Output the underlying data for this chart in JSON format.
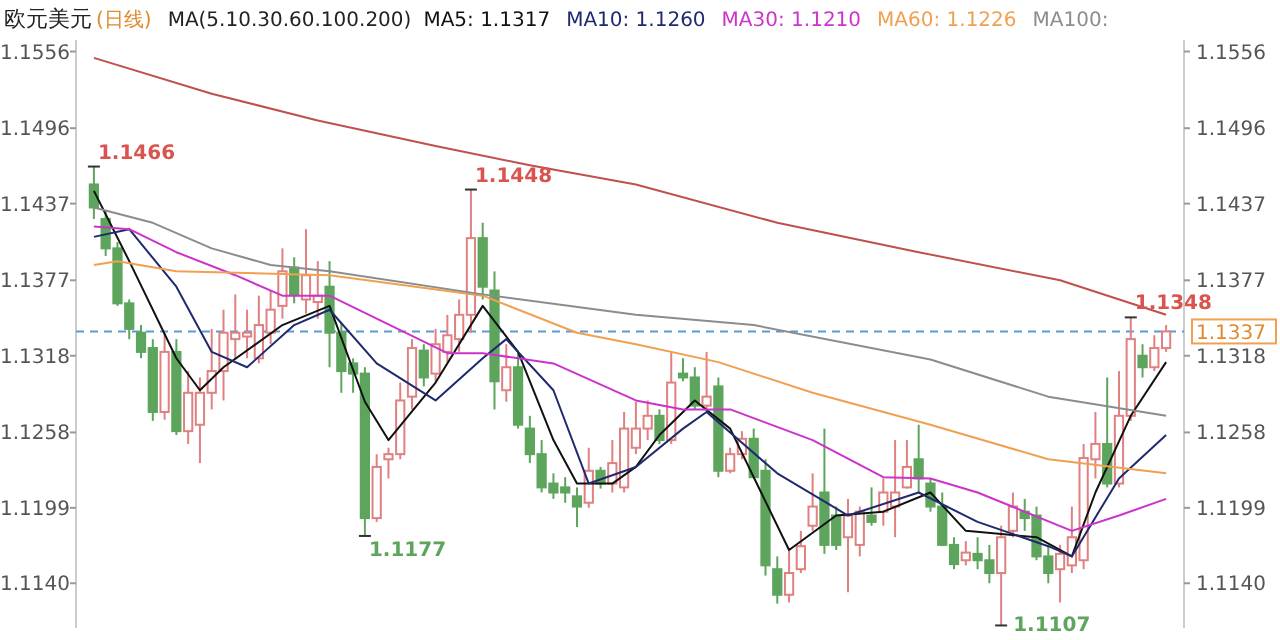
{
  "chart_data": {
    "type": "candlestick",
    "title": "欧元美元",
    "subtitle": "(日线)",
    "annotations": [
      "MA(5.10.30.60.100.200)",
      "1.1466",
      "1.1448",
      "1.1177",
      "1.1348",
      "1.1107"
    ],
    "categories": [
      null,
      null,
      null,
      null,
      null,
      null,
      null,
      null,
      null,
      null,
      null,
      null,
      null,
      null,
      null,
      null,
      null,
      null,
      null,
      null,
      null,
      null,
      null,
      null,
      null,
      null,
      null,
      null,
      null,
      null,
      null,
      null,
      null,
      null,
      null,
      null,
      null,
      null,
      null,
      null,
      null,
      null,
      null,
      null,
      null,
      null,
      null,
      null,
      null,
      null,
      null,
      null,
      null,
      null,
      null,
      null,
      null,
      null,
      null,
      null,
      null,
      null,
      null,
      null,
      null,
      null,
      null,
      null,
      null,
      null,
      null,
      null,
      null,
      null,
      null,
      null,
      null,
      null,
      null,
      null,
      null,
      null,
      null,
      null,
      null,
      null,
      null,
      null,
      null,
      null,
      null,
      null
    ],
    "ohlc": [
      [
        1.1452,
        1.1466,
        1.1425,
        1.1434
      ],
      [
        1.1425,
        1.1432,
        1.1396,
        1.1402
      ],
      [
        1.1402,
        1.1407,
        1.1357,
        1.1359
      ],
      [
        1.1359,
        1.1362,
        1.1331,
        1.1339
      ],
      [
        1.1336,
        1.1342,
        1.1316,
        1.1321
      ],
      [
        1.1324,
        1.1331,
        1.1267,
        1.1274
      ],
      [
        1.1274,
        1.1336,
        1.1268,
        1.1321
      ],
      [
        1.1321,
        1.1331,
        1.1256,
        1.1259
      ],
      [
        1.1259,
        1.1306,
        1.1249,
        1.1289
      ],
      [
        1.1264,
        1.1301,
        1.1234,
        1.1289
      ],
      [
        1.1289,
        1.1339,
        1.1276,
        1.1306
      ],
      [
        1.1306,
        1.1354,
        1.1283,
        1.1336
      ],
      [
        1.1331,
        1.1366,
        1.1316,
        1.1336
      ],
      [
        1.1333,
        1.1354,
        1.1316,
        1.1336
      ],
      [
        1.1316,
        1.1365,
        1.1312,
        1.1342
      ],
      [
        1.1336,
        1.1369,
        1.1327,
        1.1354
      ],
      [
        1.1357,
        1.1402,
        1.1347,
        1.1384
      ],
      [
        1.1387,
        1.1395,
        1.1359,
        1.1366
      ],
      [
        1.1362,
        1.1417,
        1.1351,
        1.1381
      ],
      [
        1.136,
        1.1392,
        1.1347,
        1.1365
      ],
      [
        1.1372,
        1.1392,
        1.1309,
        1.1336
      ],
      [
        1.1336,
        1.1344,
        1.1289,
        1.1306
      ],
      [
        1.1312,
        1.1316,
        1.1289,
        1.1304
      ],
      [
        1.1304,
        1.1309,
        1.1177,
        1.1191
      ],
      [
        1.1191,
        1.1241,
        1.1188,
        1.1231
      ],
      [
        1.1237,
        1.1246,
        1.1222,
        1.1241
      ],
      [
        1.1241,
        1.1297,
        1.1237,
        1.1283
      ],
      [
        1.1286,
        1.1331,
        1.1276,
        1.1324
      ],
      [
        1.1322,
        1.1327,
        1.1294,
        1.1301
      ],
      [
        1.1304,
        1.1339,
        1.1298,
        1.1327
      ],
      [
        1.1321,
        1.135,
        1.1313,
        1.1334
      ],
      [
        1.1331,
        1.1362,
        1.1321,
        1.135
      ],
      [
        1.135,
        1.1448,
        1.1336,
        1.141
      ],
      [
        1.141,
        1.1422,
        1.1362,
        1.1372
      ],
      [
        1.1369,
        1.1384,
        1.1276,
        1.1298
      ],
      [
        1.1291,
        1.1327,
        1.1282,
        1.1309
      ],
      [
        1.1309,
        1.1321,
        1.1261,
        1.1264
      ],
      [
        1.1261,
        1.1271,
        1.1234,
        1.1241
      ],
      [
        1.1241,
        1.1252,
        1.1211,
        1.1215
      ],
      [
        1.1218,
        1.1226,
        1.1206,
        1.1211
      ],
      [
        1.1215,
        1.1223,
        1.1203,
        1.1211
      ],
      [
        1.1208,
        1.1215,
        1.1184,
        1.12
      ],
      [
        1.1203,
        1.1246,
        1.1199,
        1.1228
      ],
      [
        1.1228,
        1.1231,
        1.1214,
        1.1218
      ],
      [
        1.1218,
        1.1252,
        1.1211,
        1.1234
      ],
      [
        1.1215,
        1.1274,
        1.1211,
        1.1261
      ],
      [
        1.1246,
        1.1282,
        1.1241,
        1.1261
      ],
      [
        1.1261,
        1.1283,
        1.1252,
        1.1271
      ],
      [
        1.1271,
        1.1276,
        1.1249,
        1.1252
      ],
      [
        1.1252,
        1.1321,
        1.1249,
        1.1297
      ],
      [
        1.1304,
        1.1316,
        1.1298,
        1.1301
      ],
      [
        1.1301,
        1.1309,
        1.1276,
        1.1279
      ],
      [
        1.1279,
        1.1321,
        1.1276,
        1.1286
      ],
      [
        1.1294,
        1.1301,
        1.1223,
        1.1228
      ],
      [
        1.1228,
        1.1246,
        1.1226,
        1.1241
      ],
      [
        1.1241,
        1.1259,
        1.1237,
        1.1253
      ],
      [
        1.1253,
        1.1261,
        1.1222,
        1.1223
      ],
      [
        1.1228,
        1.1237,
        1.1146,
        1.1154
      ],
      [
        1.1151,
        1.1161,
        1.1124,
        1.1131
      ],
      [
        1.1131,
        1.1166,
        1.1125,
        1.1148
      ],
      [
        1.1151,
        1.1181,
        1.1148,
        1.1169
      ],
      [
        1.1185,
        1.1226,
        1.1181,
        1.12
      ],
      [
        1.1211,
        1.1261,
        1.1163,
        1.117
      ],
      [
        1.1193,
        1.12,
        1.1166,
        1.117
      ],
      [
        1.1176,
        1.1206,
        1.1133,
        1.1193
      ],
      [
        1.117,
        1.12,
        1.1161,
        1.1196
      ],
      [
        1.1193,
        1.1215,
        1.1185,
        1.1188
      ],
      [
        1.1196,
        1.1222,
        1.1185,
        1.1211
      ],
      [
        1.12,
        1.1252,
        1.1176,
        1.1211
      ],
      [
        1.1215,
        1.1252,
        1.1214,
        1.1231
      ],
      [
        1.1237,
        1.1264,
        1.1211,
        1.1222
      ],
      [
        1.1218,
        1.1222,
        1.1196,
        1.12
      ],
      [
        1.12,
        1.1211,
        1.1169,
        1.117
      ],
      [
        1.117,
        1.1176,
        1.1151,
        1.1155
      ],
      [
        1.1158,
        1.1173,
        1.1154,
        1.1164
      ],
      [
        1.1163,
        1.1176,
        1.1151,
        1.1158
      ],
      [
        1.1158,
        1.117,
        1.114,
        1.1148
      ],
      [
        1.1148,
        1.1185,
        1.1107,
        1.1176
      ],
      [
        1.1181,
        1.1211,
        1.1176,
        1.12
      ],
      [
        1.1196,
        1.1206,
        1.1181,
        1.1191
      ],
      [
        1.1193,
        1.12,
        1.1158,
        1.1161
      ],
      [
        1.1161,
        1.117,
        1.114,
        1.1148
      ],
      [
        1.1151,
        1.117,
        1.1125,
        1.1163
      ],
      [
        1.1154,
        1.12,
        1.1148,
        1.1176
      ],
      [
        1.1158,
        1.1249,
        1.1151,
        1.1238
      ],
      [
        1.1237,
        1.1274,
        1.1222,
        1.1249
      ],
      [
        1.1249,
        1.1301,
        1.1215,
        1.1218
      ],
      [
        1.1218,
        1.1306,
        1.1215,
        1.1271
      ],
      [
        1.1271,
        1.1348,
        1.1267,
        1.1331
      ],
      [
        1.1318,
        1.1327,
        1.1301,
        1.1309
      ],
      [
        1.1309,
        1.1334,
        1.1306,
        1.1324
      ],
      [
        1.1324,
        1.1342,
        1.1321,
        1.1337
      ]
    ],
    "series": [
      {
        "name": "MA5: 1.1317",
        "type": "line",
        "color": "#111111",
        "values": [
          1.1447,
          null,
          null,
          1.1392,
          null,
          null,
          null,
          1.1316,
          null,
          1.1291,
          null,
          1.1309,
          null,
          null,
          null,
          null,
          1.1342,
          null,
          null,
          null,
          1.1357,
          null,
          null,
          1.1282,
          null,
          1.1252,
          null,
          null,
          null,
          1.1297,
          null,
          null,
          null,
          1.1357,
          null,
          null,
          1.1321,
          null,
          null,
          1.1252,
          null,
          1.1218,
          null,
          null,
          1.1218,
          null,
          1.1231,
          null,
          1.1256,
          null,
          null,
          1.1283,
          null,
          null,
          1.1261,
          null,
          null,
          null,
          null,
          1.1166,
          null,
          null,
          null,
          1.1193,
          null,
          null,
          null,
          1.1196,
          null,
          null,
          null,
          1.1211,
          null,
          null,
          1.1181,
          null,
          null,
          null,
          null,
          null,
          1.1176,
          null,
          null,
          1.1161,
          null,
          1.1211,
          null,
          null,
          1.1271,
          null,
          null,
          1.1313
        ]
      },
      {
        "name": "MA10: 1.1260",
        "type": "line",
        "color": "#1f2a6e",
        "values": [
          1.1411,
          null,
          null,
          1.1417,
          null,
          null,
          null,
          1.1372,
          null,
          null,
          1.1321,
          null,
          null,
          1.1309,
          null,
          null,
          null,
          1.1342,
          null,
          null,
          1.1354,
          null,
          null,
          null,
          1.1312,
          null,
          null,
          null,
          null,
          1.1283,
          null,
          null,
          null,
          1.1316,
          null,
          1.1331,
          null,
          null,
          null,
          1.1291,
          null,
          null,
          1.1218,
          null,
          null,
          null,
          1.1231,
          null,
          null,
          null,
          1.1261,
          null,
          1.1274,
          null,
          null,
          null,
          null,
          null,
          1.1226,
          null,
          null,
          null,
          null,
          null,
          1.1193,
          null,
          null,
          null,
          null,
          null,
          1.1211,
          null,
          null,
          null,
          null,
          1.1188,
          null,
          null,
          null,
          null,
          null,
          1.1169,
          null,
          1.1161,
          null,
          null,
          null,
          1.1222,
          null,
          null,
          null,
          1.1256
        ]
      },
      {
        "name": "MA30: 1.1210",
        "type": "line",
        "color": "#cc33cc",
        "values": [
          1.1419,
          null,
          null,
          1.1417,
          null,
          null,
          null,
          1.1399,
          null,
          null,
          null,
          null,
          1.1381,
          null,
          null,
          null,
          1.1365,
          null,
          null,
          null,
          1.1365,
          null,
          null,
          null,
          1.1347,
          null,
          null,
          null,
          null,
          null,
          1.132,
          null,
          null,
          1.132,
          null,
          null,
          null,
          null,
          null,
          1.1312,
          null,
          null,
          null,
          null,
          null,
          null,
          1.1283,
          null,
          null,
          null,
          1.1276,
          null,
          null,
          null,
          1.1276,
          null,
          null,
          null,
          null,
          null,
          null,
          1.1252,
          null,
          null,
          null,
          null,
          null,
          1.1223,
          null,
          null,
          null,
          1.1222,
          null,
          null,
          null,
          1.1211,
          null,
          null,
          null,
          null,
          null,
          null,
          null,
          1.1181,
          null,
          null,
          null,
          1.1193,
          null,
          null,
          null,
          1.1206
        ]
      },
      {
        "name": "MA60: 1.1226",
        "type": "line",
        "color": "#f0a050",
        "values": [
          1.1389,
          null,
          1.1392,
          null,
          null,
          null,
          null,
          1.1384,
          null,
          null,
          null,
          null,
          null,
          null,
          null,
          null,
          null,
          null,
          null,
          null,
          1.1381,
          null,
          null,
          null,
          null,
          null,
          null,
          null,
          null,
          null,
          null,
          null,
          null,
          1.1365,
          null,
          null,
          null,
          null,
          null,
          null,
          null,
          1.1336,
          null,
          null,
          null,
          null,
          1.1327,
          null,
          null,
          null,
          null,
          null,
          null,
          1.1313,
          null,
          null,
          null,
          null,
          null,
          null,
          null,
          1.1289,
          null,
          null,
          null,
          null,
          null,
          null,
          null,
          null,
          null,
          1.1264,
          null,
          null,
          null,
          null,
          null,
          null,
          null,
          null,
          null,
          1.1237,
          null,
          null,
          null,
          null,
          null,
          null,
          null,
          null,
          null,
          1.1226
        ]
      },
      {
        "name": "MA100:",
        "type": "line",
        "color": "#8c8c8c",
        "values": [
          1.1434,
          null,
          null,
          null,
          null,
          1.1422,
          null,
          null,
          null,
          null,
          1.1402,
          null,
          null,
          null,
          null,
          1.1389,
          null,
          null,
          null,
          null,
          1.1384,
          null,
          null,
          null,
          null,
          null,
          null,
          null,
          null,
          null,
          null,
          null,
          null,
          1.1366,
          null,
          null,
          null,
          null,
          null,
          null,
          null,
          null,
          null,
          null,
          null,
          null,
          1.135,
          null,
          null,
          null,
          null,
          null,
          null,
          null,
          null,
          null,
          1.1342,
          null,
          null,
          null,
          null,
          null,
          null,
          null,
          null,
          null,
          null,
          null,
          null,
          null,
          null,
          1.1315,
          null,
          null,
          null,
          null,
          null,
          null,
          null,
          null,
          null,
          1.1286,
          null,
          null,
          null,
          null,
          null,
          null,
          null,
          null,
          null,
          1.1271
        ]
      },
      {
        "type": "line",
        "color": "#c0504d",
        "values": [
          1.1551,
          null,
          null,
          null,
          null,
          null,
          null,
          null,
          null,
          null,
          1.1523,
          null,
          null,
          null,
          null,
          null,
          null,
          null,
          null,
          1.1502,
          null,
          null,
          null,
          null,
          null,
          null,
          null,
          null,
          null,
          1.1482,
          null,
          null,
          null,
          null,
          null,
          null,
          null,
          1.1467,
          null,
          null,
          null,
          null,
          null,
          null,
          null,
          null,
          1.1452,
          null,
          null,
          null,
          null,
          null,
          null,
          null,
          null,
          null,
          null,
          null,
          1.1422,
          null,
          null,
          null,
          null,
          null,
          null,
          null,
          null,
          null,
          null,
          null,
          1.1399,
          null,
          null,
          null,
          null,
          null,
          null,
          null,
          null,
          null,
          null,
          null,
          1.1377,
          null,
          null,
          null,
          null,
          null,
          null,
          null,
          null,
          1.135
        ]
      }
    ],
    "ylim": [
      1.1105,
      1.1565
    ],
    "yticks": [
      1.1556,
      1.1496,
      1.1437,
      1.1377,
      1.1318,
      1.1258,
      1.1199,
      {
        "value": 1.114,
        "label": "1.1140"
      }
    ],
    "y2lim": [
      1.1105,
      1.1565
    ],
    "y2ticks": [
      1.1556,
      1.1496,
      1.1437,
      1.1377,
      1.1318,
      1.1258,
      1.1199,
      {
        "value": 1.114,
        "label": "1.1140"
      }
    ],
    "ref_lines": [
      {
        "axis": "y",
        "value": 1.1337,
        "label": "1.1337",
        "color": "#5b9bd5",
        "line_style": "dashed"
      }
    ],
    "legend": "top",
    "grid": false
  }
}
